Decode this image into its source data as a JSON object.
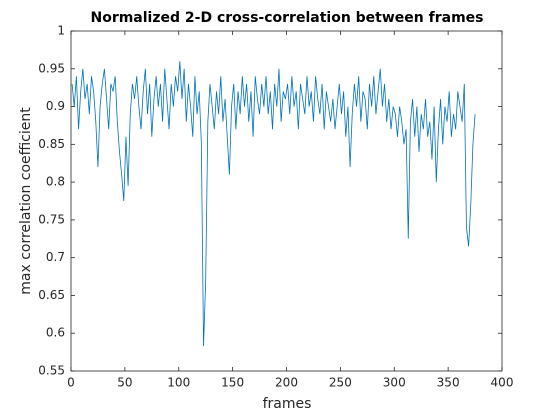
{
  "chart_data": {
    "type": "line",
    "title": "Normalized 2-D cross-correlation between frames",
    "x_label": "frames",
    "y_label": "max correlation coefficient",
    "xlim": [
      0,
      400
    ],
    "xticks": [
      0,
      50,
      100,
      150,
      200,
      250,
      300,
      350,
      400
    ],
    "ylim": [
      0.55,
      1
    ],
    "yticks": [
      0.55,
      0.6,
      0.65,
      0.7,
      0.75,
      0.8,
      0.85,
      0.9,
      0.95,
      1
    ],
    "grid": false,
    "x": [
      1,
      3,
      5,
      7,
      9,
      11,
      13,
      15,
      17,
      19,
      21,
      23,
      25,
      27,
      29,
      31,
      33,
      35,
      37,
      39,
      41,
      43,
      45,
      47,
      49,
      51,
      53,
      55,
      57,
      59,
      61,
      63,
      65,
      67,
      69,
      71,
      73,
      75,
      77,
      79,
      81,
      83,
      85,
      87,
      89,
      91,
      93,
      95,
      97,
      99,
      101,
      103,
      105,
      107,
      109,
      111,
      113,
      115,
      117,
      119,
      121,
      123,
      125,
      127,
      129,
      131,
      133,
      135,
      137,
      139,
      141,
      143,
      145,
      147,
      149,
      151,
      153,
      155,
      157,
      159,
      161,
      163,
      165,
      167,
      169,
      171,
      173,
      175,
      177,
      179,
      181,
      183,
      185,
      187,
      189,
      191,
      193,
      195,
      197,
      199,
      201,
      203,
      205,
      207,
      209,
      211,
      213,
      215,
      217,
      219,
      221,
      223,
      225,
      227,
      229,
      231,
      233,
      235,
      237,
      239,
      241,
      243,
      245,
      247,
      249,
      251,
      253,
      255,
      257,
      259,
      261,
      263,
      265,
      267,
      269,
      271,
      273,
      275,
      277,
      279,
      281,
      283,
      285,
      287,
      289,
      291,
      293,
      295,
      297,
      299,
      301,
      303,
      305,
      307,
      309,
      311,
      313,
      315,
      317,
      319,
      321,
      323,
      325,
      327,
      329,
      331,
      333,
      335,
      337,
      339,
      341,
      343,
      345,
      347,
      349,
      351,
      353,
      355,
      357,
      359,
      361,
      363,
      365,
      367,
      369,
      371,
      373,
      375
    ],
    "series": [
      {
        "color": "#0072bd",
        "values": [
          0.93,
          0.9,
          0.94,
          0.87,
          0.92,
          0.95,
          0.91,
          0.93,
          0.89,
          0.94,
          0.92,
          0.88,
          0.82,
          0.9,
          0.93,
          0.95,
          0.91,
          0.87,
          0.93,
          0.92,
          0.94,
          0.88,
          0.84,
          0.81,
          0.775,
          0.86,
          0.795,
          0.89,
          0.93,
          0.91,
          0.94,
          0.9,
          0.87,
          0.92,
          0.95,
          0.89,
          0.93,
          0.86,
          0.91,
          0.94,
          0.9,
          0.93,
          0.88,
          0.95,
          0.91,
          0.87,
          0.93,
          0.9,
          0.94,
          0.92,
          0.96,
          0.91,
          0.95,
          0.88,
          0.93,
          0.9,
          0.86,
          0.94,
          0.89,
          0.92,
          0.85,
          0.583,
          0.67,
          0.88,
          0.93,
          0.9,
          0.87,
          0.92,
          0.89,
          0.94,
          0.88,
          0.91,
          0.86,
          0.81,
          0.9,
          0.93,
          0.87,
          0.92,
          0.89,
          0.94,
          0.9,
          0.93,
          0.88,
          0.92,
          0.86,
          0.94,
          0.91,
          0.89,
          0.93,
          0.9,
          0.94,
          0.89,
          0.92,
          0.87,
          0.93,
          0.9,
          0.95,
          0.88,
          0.92,
          0.91,
          0.93,
          0.89,
          0.94,
          0.9,
          0.92,
          0.87,
          0.93,
          0.91,
          0.89,
          0.94,
          0.9,
          0.92,
          0.88,
          0.94,
          0.91,
          0.89,
          0.93,
          0.87,
          0.92,
          0.9,
          0.88,
          0.91,
          0.87,
          0.9,
          0.93,
          0.89,
          0.92,
          0.86,
          0.9,
          0.82,
          0.89,
          0.93,
          0.9,
          0.94,
          0.88,
          0.92,
          0.91,
          0.87,
          0.93,
          0.9,
          0.94,
          0.89,
          0.92,
          0.95,
          0.9,
          0.93,
          0.88,
          0.91,
          0.87,
          0.9,
          0.89,
          0.86,
          0.9,
          0.88,
          0.85,
          0.87,
          0.725,
          0.88,
          0.91,
          0.86,
          0.9,
          0.84,
          0.89,
          0.87,
          0.91,
          0.86,
          0.88,
          0.83,
          0.9,
          0.8,
          0.87,
          0.91,
          0.85,
          0.9,
          0.88,
          0.92,
          0.86,
          0.89,
          0.87,
          0.92,
          0.9,
          0.88,
          0.93,
          0.74,
          0.715,
          0.77,
          0.85,
          0.89
        ]
      }
    ]
  }
}
